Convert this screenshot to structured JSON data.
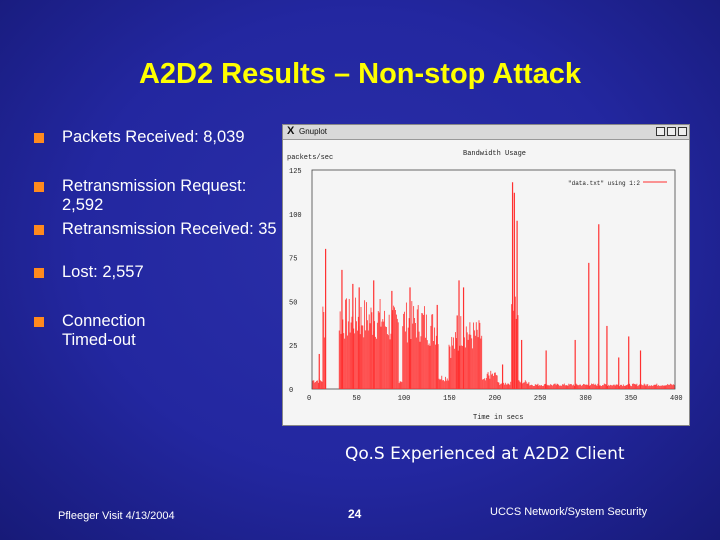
{
  "slide": {
    "title": "A2D2 Results – Non-stop Attack",
    "bullets": [
      {
        "text": "Packets Received: 8,039"
      },
      {
        "text": "Retransmission Request: 2,592"
      },
      {
        "text": "Retransmission Received: 35"
      },
      {
        "text": "Lost: 2,557"
      },
      {
        "text": "Connection Timed-out"
      }
    ],
    "bullet_color": "#ff8a1e",
    "caption": "Qo.S Experienced at A2D2 Client",
    "footer_left": "Pfleeger Visit 4/13/2004",
    "footer_center": "24",
    "footer_right": "UCCS Network/System Security"
  },
  "plot_window": {
    "app_title": "Gnuplot",
    "buttons": [
      "minimize-icon",
      "maximize-icon",
      "close-icon"
    ]
  },
  "chart_data": {
    "type": "bar",
    "title": "Bandwidth Usage",
    "ylabel": "packets/sec",
    "xlabel": "Time in secs",
    "xlim": [
      0,
      400
    ],
    "ylim": [
      0,
      125
    ],
    "x_ticks": [
      "0",
      "50",
      "100",
      "150",
      "200",
      "250",
      "300",
      "350",
      "400"
    ],
    "y_ticks": [
      "0",
      "25",
      "50",
      "75",
      "100",
      "125"
    ],
    "legend": "\"data.txt\" using 1:2",
    "series_color": "#ff3030",
    "segments": [
      {
        "x_from": 1,
        "x_to": 12,
        "base": 6
      },
      {
        "x_from": 12,
        "x_to": 16,
        "base": 50
      },
      {
        "x_from": 30,
        "x_to": 80,
        "base": 50
      },
      {
        "x_from": 80,
        "x_to": 96,
        "base": 46
      },
      {
        "x_from": 96,
        "x_to": 100,
        "base": 6
      },
      {
        "x_from": 100,
        "x_to": 125,
        "base": 48
      },
      {
        "x_from": 125,
        "x_to": 140,
        "base": 44
      },
      {
        "x_from": 140,
        "x_to": 151,
        "base": 8
      },
      {
        "x_from": 151,
        "x_to": 162,
        "base": 32
      },
      {
        "x_from": 162,
        "x_to": 172,
        "base": 42
      },
      {
        "x_from": 172,
        "x_to": 188,
        "base": 38
      },
      {
        "x_from": 188,
        "x_to": 193,
        "base": 6
      },
      {
        "x_from": 193,
        "x_to": 205,
        "base": 10
      },
      {
        "x_from": 205,
        "x_to": 220,
        "base": 4
      },
      {
        "x_from": 220,
        "x_to": 228,
        "base": 60
      },
      {
        "x_from": 228,
        "x_to": 240,
        "base": 5
      },
      {
        "x_from": 240,
        "x_to": 400,
        "base": 3
      }
    ],
    "spikes": [
      {
        "x": 8,
        "y": 20
      },
      {
        "x": 15,
        "y": 80
      },
      {
        "x": 33,
        "y": 68
      },
      {
        "x": 45,
        "y": 60
      },
      {
        "x": 52,
        "y": 58
      },
      {
        "x": 68,
        "y": 62
      },
      {
        "x": 88,
        "y": 56
      },
      {
        "x": 108,
        "y": 58
      },
      {
        "x": 138,
        "y": 48
      },
      {
        "x": 160,
        "y": 42
      },
      {
        "x": 162,
        "y": 62
      },
      {
        "x": 167,
        "y": 58
      },
      {
        "x": 210,
        "y": 14
      },
      {
        "x": 221,
        "y": 118
      },
      {
        "x": 223,
        "y": 112
      },
      {
        "x": 226,
        "y": 96
      },
      {
        "x": 231,
        "y": 28
      },
      {
        "x": 258,
        "y": 22
      },
      {
        "x": 290,
        "y": 28
      },
      {
        "x": 305,
        "y": 72
      },
      {
        "x": 316,
        "y": 94
      },
      {
        "x": 325,
        "y": 36
      },
      {
        "x": 338,
        "y": 18
      },
      {
        "x": 349,
        "y": 30
      },
      {
        "x": 362,
        "y": 22
      }
    ]
  }
}
